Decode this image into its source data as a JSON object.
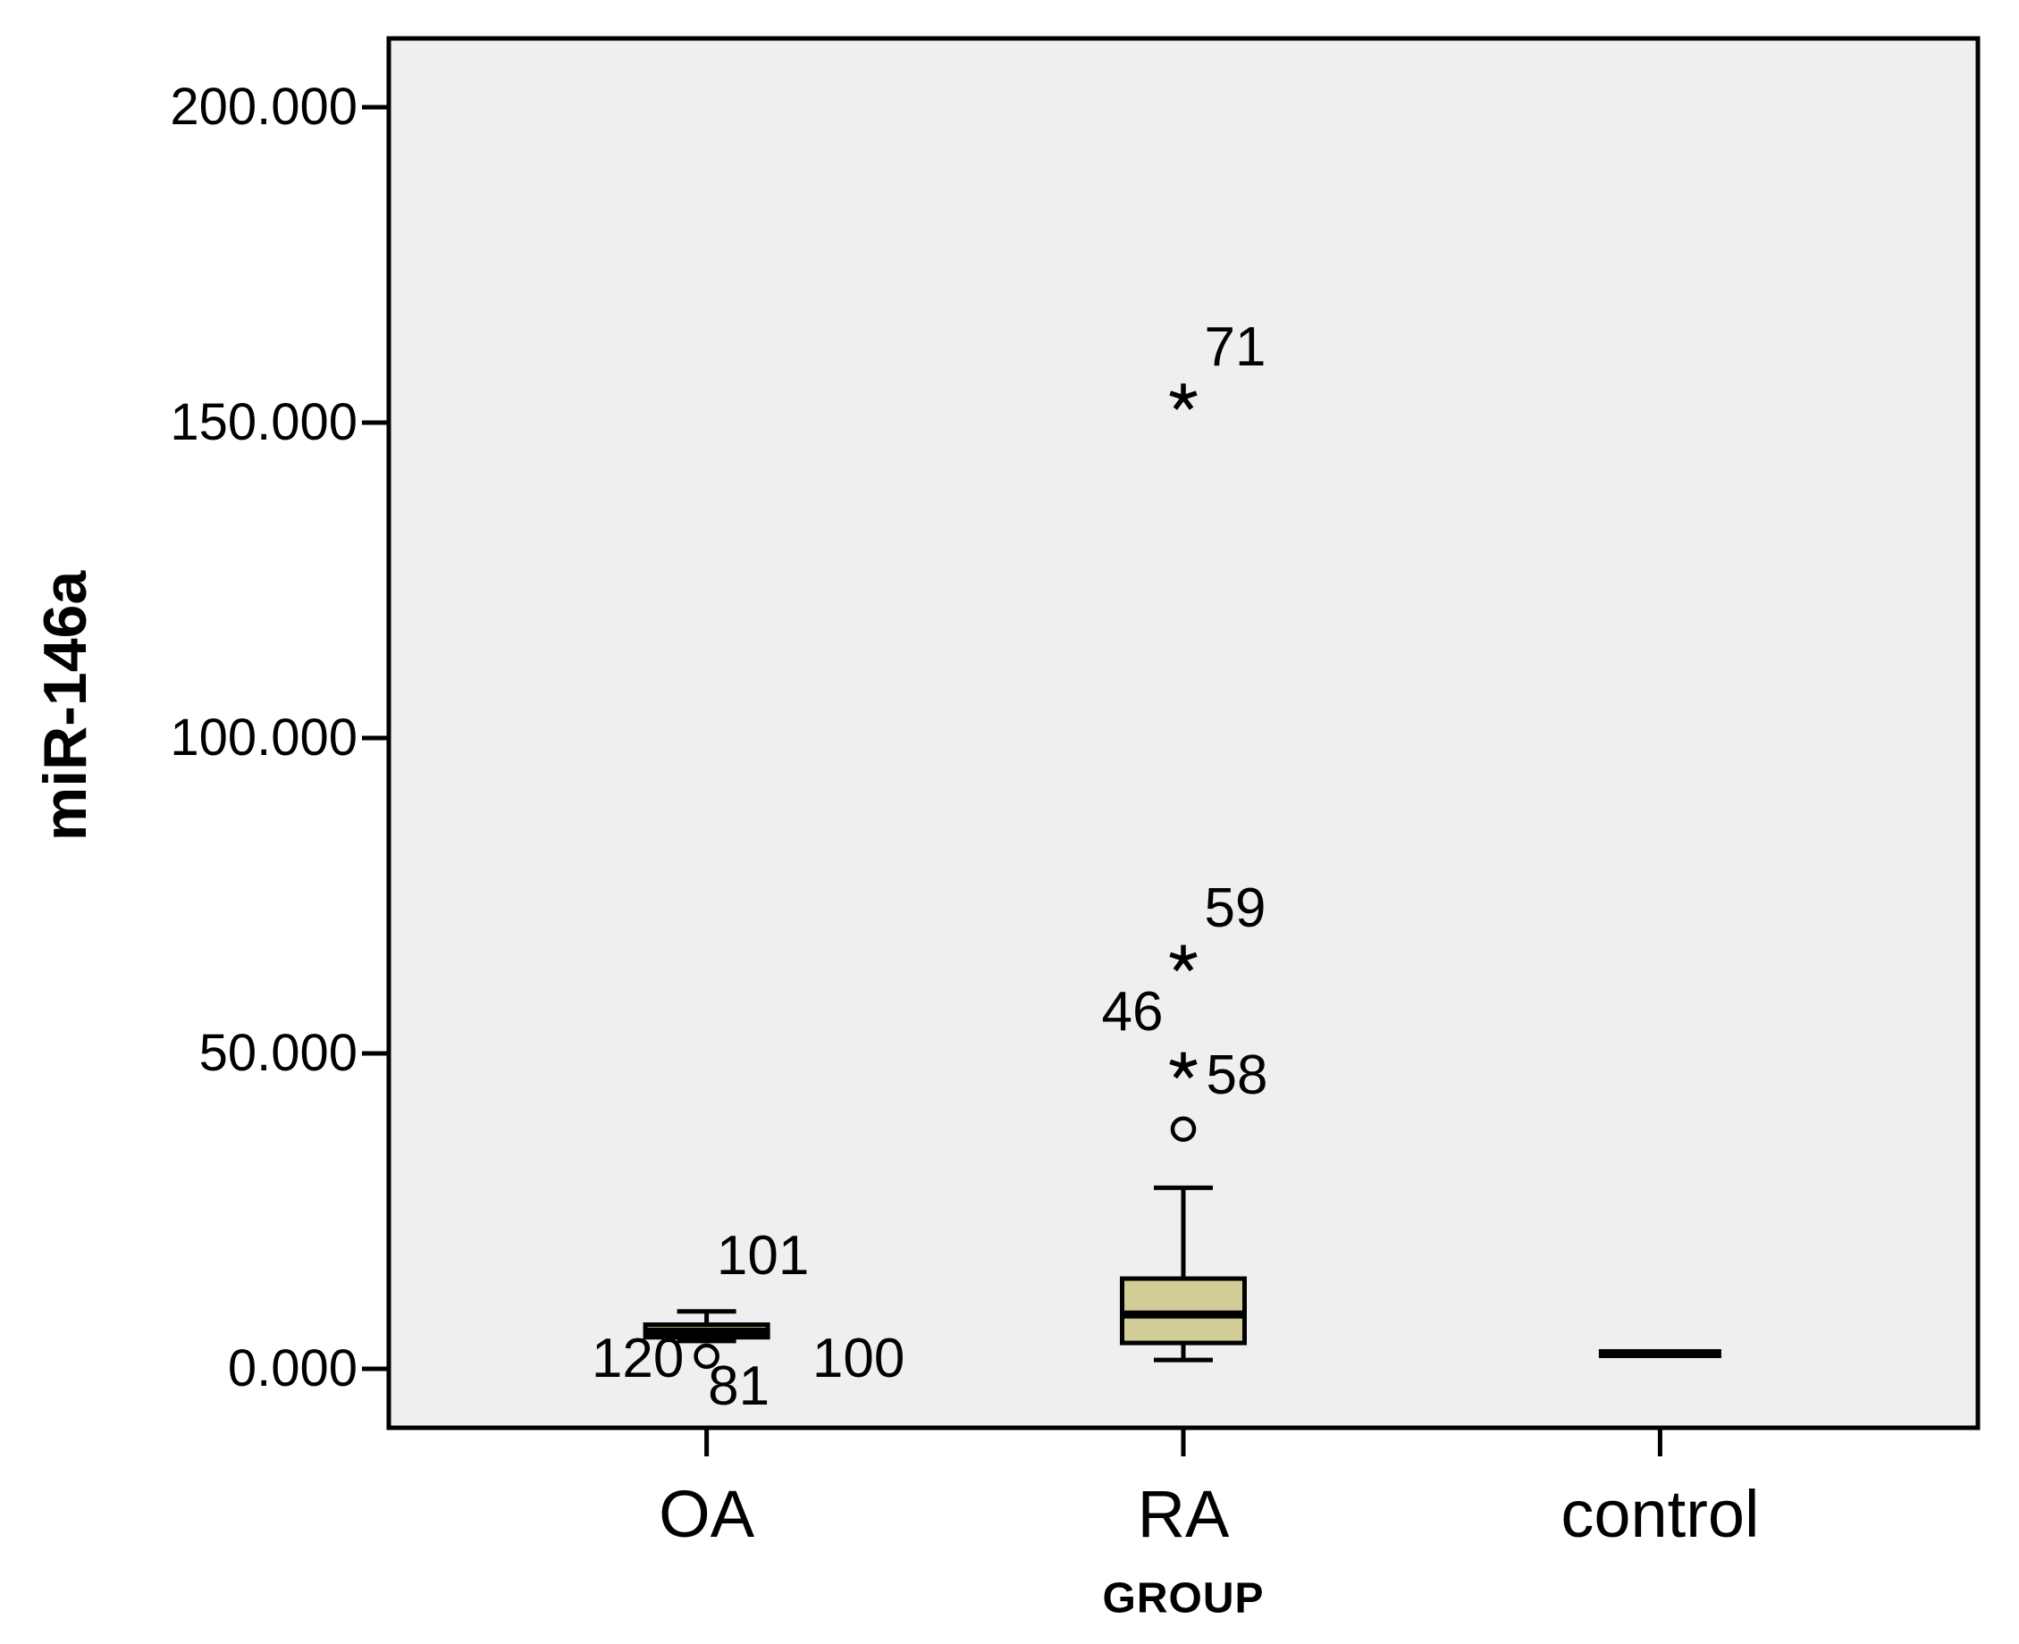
{
  "figure": {
    "background": "#ffffff",
    "plot_background": "#efefef",
    "line_color": "#000000",
    "box_fill_color": "#d2cc96"
  },
  "chart_data": {
    "type": "box",
    "title": "",
    "ylabel": "miR-146a",
    "xlabel": "GROUP",
    "categories": [
      "OA",
      "RA",
      "control"
    ],
    "legend": "none",
    "grid": "off",
    "ylim": [
      -9300,
      210900
    ],
    "yticks": [
      {
        "value": 0,
        "label": "0.000"
      },
      {
        "value": 50000,
        "label": "50.000"
      },
      {
        "value": 100000,
        "label": "100.000"
      },
      {
        "value": 150000,
        "label": "150.000"
      },
      {
        "value": 200000,
        "label": "200.000"
      }
    ],
    "series": [
      {
        "category": "OA",
        "q1": 5000,
        "median": 5900,
        "q3": 7000,
        "whisker_low": 4400,
        "whisker_high": 9100,
        "collapsed": false,
        "outliers": [
          {
            "marker": "circle",
            "value": 2000
          }
        ],
        "case_labels": [
          {
            "text": "101",
            "value": 17800,
            "dx": 63,
            "dy": 0
          },
          {
            "text": "120",
            "value": 2000,
            "dx": -77,
            "dy": 3
          },
          {
            "text": "81",
            "value": 2000,
            "dx": 36,
            "dy": 34
          },
          {
            "text": "100",
            "value": 2000,
            "dx": 170,
            "dy": 3
          }
        ]
      },
      {
        "category": "RA",
        "q1": 4100,
        "median": 8600,
        "q3": 14300,
        "whisker_low": 1400,
        "whisker_high": 28700,
        "collapsed": false,
        "outliers": [
          {
            "marker": "asterisk",
            "value": 154000
          },
          {
            "marker": "asterisk",
            "value": 65000
          },
          {
            "marker": "asterisk",
            "value": 48000
          },
          {
            "marker": "circle",
            "value": 38000
          }
        ],
        "case_labels": [
          {
            "text": "71",
            "value": 154000,
            "dx": 58,
            "dy": -56
          },
          {
            "text": "59",
            "value": 65000,
            "dx": 58,
            "dy": -56
          },
          {
            "text": "46",
            "value": 56500,
            "dx": -57,
            "dy": 0
          },
          {
            "text": "58",
            "value": 48000,
            "dx": 60,
            "dy": 11
          }
        ]
      },
      {
        "category": "control",
        "q1": 2400,
        "median": 2400,
        "q3": 2400,
        "whisker_low": null,
        "whisker_high": null,
        "collapsed": true,
        "outliers": [],
        "case_labels": []
      }
    ]
  }
}
